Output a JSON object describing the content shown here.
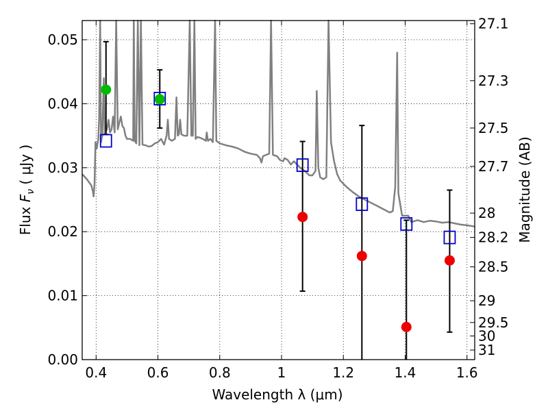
{
  "chart_data": {
    "type": "scatter",
    "xlabel": "Wavelength  λ (μm)",
    "ylabel": "Flux  F_ν  ( μJy )",
    "ylabel_right": "Magnitude (AB)",
    "xlim": [
      0.355,
      1.625
    ],
    "ylim": [
      0.0,
      0.053
    ],
    "grid": true,
    "x_ticks": [
      0.4,
      0.6,
      0.8,
      1.0,
      1.2,
      1.4,
      1.6
    ],
    "x_tick_labels": [
      "0.4",
      "0.6",
      "0.8",
      "1",
      "1.2",
      "1.4",
      "1.6"
    ],
    "y_ticks": [
      0.0,
      0.01,
      0.02,
      0.03,
      0.04,
      0.05
    ],
    "y_tick_labels": [
      "0.00",
      "0.01",
      "0.02",
      "0.03",
      "0.04",
      "0.05"
    ],
    "right_ticks": [
      {
        "label": "27.1",
        "flux": 0.0525
      },
      {
        "label": "27.3",
        "flux": 0.0436
      },
      {
        "label": "27.5",
        "flux": 0.0362
      },
      {
        "label": "27.7",
        "flux": 0.0302
      },
      {
        "label": "28",
        "flux": 0.0229
      },
      {
        "label": "28.2",
        "flux": 0.0191
      },
      {
        "label": "28.5",
        "flux": 0.0145
      },
      {
        "label": "29",
        "flux": 0.0092
      },
      {
        "label": "29.5",
        "flux": 0.0058
      },
      {
        "label": "30",
        "flux": 0.0037
      },
      {
        "label": "31",
        "flux": 0.0015
      }
    ],
    "series": [
      {
        "color": "#00bb00",
        "marker": "circle",
        "points": [
          {
            "x": 0.432,
            "y": 0.0422,
            "err_lo": 0.0352,
            "err_hi": 0.0497
          },
          {
            "x": 0.606,
            "y": 0.0407,
            "err_lo": 0.0362,
            "err_hi": 0.0453
          }
        ]
      },
      {
        "color": "#ee0000",
        "marker": "circle",
        "points": [
          {
            "x": 1.068,
            "y": 0.0223,
            "err_lo": 0.0107,
            "err_hi": 0.0341
          },
          {
            "x": 1.26,
            "y": 0.0162,
            "err_lo": 0.0,
            "err_hi": 0.0366
          },
          {
            "x": 1.404,
            "y": 0.0051,
            "err_lo": 0.0,
            "err_hi": 0.0218
          },
          {
            "x": 1.544,
            "y": 0.0155,
            "err_lo": 0.0043,
            "err_hi": 0.0265
          }
        ]
      },
      {
        "color": "#0000cc",
        "marker": "open-square",
        "points": [
          {
            "x": 0.432,
            "y": 0.0342
          },
          {
            "x": 0.606,
            "y": 0.0408
          },
          {
            "x": 1.068,
            "y": 0.0304
          },
          {
            "x": 1.26,
            "y": 0.0243
          },
          {
            "x": 1.404,
            "y": 0.0212
          },
          {
            "x": 1.544,
            "y": 0.0191
          }
        ]
      }
    ],
    "model_spectrum": {
      "color": "#808080",
      "points": [
        [
          0.355,
          0.029
        ],
        [
          0.37,
          0.0282
        ],
        [
          0.385,
          0.0272
        ],
        [
          0.39,
          0.0262
        ],
        [
          0.392,
          0.0255
        ],
        [
          0.395,
          0.0275
        ],
        [
          0.398,
          0.034
        ],
        [
          0.402,
          0.033
        ],
        [
          0.407,
          0.0345
        ],
        [
          0.41,
          0.038
        ],
        [
          0.413,
          0.053
        ],
        [
          0.416,
          0.034
        ],
        [
          0.42,
          0.035
        ],
        [
          0.425,
          0.044
        ],
        [
          0.428,
          0.0352
        ],
        [
          0.435,
          0.036
        ],
        [
          0.44,
          0.0375
        ],
        [
          0.445,
          0.0355
        ],
        [
          0.45,
          0.036
        ],
        [
          0.455,
          0.038
        ],
        [
          0.46,
          0.0355
        ],
        [
          0.465,
          0.053
        ],
        [
          0.47,
          0.036
        ],
        [
          0.475,
          0.037
        ],
        [
          0.48,
          0.038
        ],
        [
          0.485,
          0.0365
        ],
        [
          0.49,
          0.0362
        ],
        [
          0.495,
          0.035
        ],
        [
          0.5,
          0.0345
        ],
        [
          0.51,
          0.0345
        ],
        [
          0.52,
          0.0342
        ],
        [
          0.522,
          0.053
        ],
        [
          0.525,
          0.0342
        ],
        [
          0.53,
          0.0338
        ],
        [
          0.535,
          0.053
        ],
        [
          0.54,
          0.0335
        ],
        [
          0.545,
          0.053
        ],
        [
          0.55,
          0.0336
        ],
        [
          0.56,
          0.0335
        ],
        [
          0.57,
          0.0333
        ],
        [
          0.58,
          0.0334
        ],
        [
          0.59,
          0.0338
        ],
        [
          0.6,
          0.034
        ],
        [
          0.61,
          0.0345
        ],
        [
          0.62,
          0.0336
        ],
        [
          0.628,
          0.035
        ],
        [
          0.632,
          0.0375
        ],
        [
          0.636,
          0.0345
        ],
        [
          0.645,
          0.0342
        ],
        [
          0.655,
          0.0345
        ],
        [
          0.66,
          0.041
        ],
        [
          0.664,
          0.035
        ],
        [
          0.668,
          0.0352
        ],
        [
          0.672,
          0.0375
        ],
        [
          0.676,
          0.0352
        ],
        [
          0.685,
          0.035
        ],
        [
          0.695,
          0.035
        ],
        [
          0.703,
          0.053
        ],
        [
          0.708,
          0.035
        ],
        [
          0.713,
          0.035
        ],
        [
          0.718,
          0.053
        ],
        [
          0.722,
          0.0345
        ],
        [
          0.728,
          0.0348
        ],
        [
          0.735,
          0.0347
        ],
        [
          0.745,
          0.0345
        ],
        [
          0.755,
          0.0342
        ],
        [
          0.758,
          0.0355
        ],
        [
          0.762,
          0.0342
        ],
        [
          0.77,
          0.0345
        ],
        [
          0.778,
          0.034
        ],
        [
          0.785,
          0.053
        ],
        [
          0.789,
          0.0342
        ],
        [
          0.8,
          0.0338
        ],
        [
          0.82,
          0.0335
        ],
        [
          0.84,
          0.0333
        ],
        [
          0.86,
          0.033
        ],
        [
          0.88,
          0.0325
        ],
        [
          0.9,
          0.0322
        ],
        [
          0.92,
          0.032
        ],
        [
          0.93,
          0.0315
        ],
        [
          0.935,
          0.0308
        ],
        [
          0.94,
          0.0318
        ],
        [
          0.95,
          0.032
        ],
        [
          0.96,
          0.0322
        ],
        [
          0.966,
          0.053
        ],
        [
          0.972,
          0.032
        ],
        [
          0.985,
          0.0318
        ],
        [
          0.995,
          0.0312
        ],
        [
          1.005,
          0.031
        ],
        [
          1.01,
          0.0315
        ],
        [
          1.02,
          0.0312
        ],
        [
          1.03,
          0.0305
        ],
        [
          1.04,
          0.031
        ],
        [
          1.05,
          0.0305
        ],
        [
          1.06,
          0.03
        ],
        [
          1.075,
          0.0295
        ],
        [
          1.09,
          0.0288
        ],
        [
          1.1,
          0.0288
        ],
        [
          1.11,
          0.0295
        ],
        [
          1.114,
          0.042
        ],
        [
          1.119,
          0.03
        ],
        [
          1.125,
          0.0285
        ],
        [
          1.135,
          0.0282
        ],
        [
          1.145,
          0.0285
        ],
        [
          1.152,
          0.053
        ],
        [
          1.16,
          0.034
        ],
        [
          1.17,
          0.031
        ],
        [
          1.18,
          0.029
        ],
        [
          1.19,
          0.028
        ],
        [
          1.21,
          0.027
        ],
        [
          1.23,
          0.0262
        ],
        [
          1.25,
          0.0255
        ],
        [
          1.27,
          0.025
        ],
        [
          1.29,
          0.0245
        ],
        [
          1.31,
          0.024
        ],
        [
          1.33,
          0.0235
        ],
        [
          1.35,
          0.023
        ],
        [
          1.36,
          0.0232
        ],
        [
          1.368,
          0.027
        ],
        [
          1.374,
          0.048
        ],
        [
          1.378,
          0.026
        ],
        [
          1.39,
          0.0225
        ],
        [
          1.41,
          0.0225
        ],
        [
          1.42,
          0.0215
        ],
        [
          1.44,
          0.0218
        ],
        [
          1.46,
          0.0215
        ],
        [
          1.48,
          0.0217
        ],
        [
          1.5,
          0.0216
        ],
        [
          1.52,
          0.0214
        ],
        [
          1.54,
          0.0215
        ],
        [
          1.56,
          0.0213
        ],
        [
          1.58,
          0.0211
        ],
        [
          1.6,
          0.021
        ],
        [
          1.625,
          0.0208
        ]
      ]
    }
  }
}
